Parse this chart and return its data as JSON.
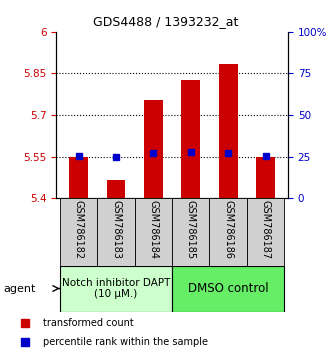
{
  "title": "GDS4488 / 1393232_at",
  "samples": [
    "GSM786182",
    "GSM786183",
    "GSM786184",
    "GSM786185",
    "GSM786186",
    "GSM786187"
  ],
  "red_values": [
    5.548,
    5.465,
    5.755,
    5.825,
    5.885,
    5.548
  ],
  "blue_values": [
    5.553,
    5.549,
    5.562,
    5.565,
    5.562,
    5.551
  ],
  "ylim_left": [
    5.4,
    6.0
  ],
  "ylim_right": [
    0,
    100
  ],
  "yticks_left": [
    5.4,
    5.55,
    5.7,
    5.85,
    6.0
  ],
  "ytick_labels_left": [
    "5.4",
    "5.55",
    "5.7",
    "5.85",
    "6"
  ],
  "yticks_right": [
    0,
    25,
    50,
    75,
    100
  ],
  "ytick_labels_right": [
    "0",
    "25",
    "50",
    "75",
    "100%"
  ],
  "group1_label": "Notch inhibitor DAPT\n(10 μM.)",
  "group2_label": "DMSO control",
  "group1_indices": [
    0,
    1,
    2
  ],
  "group2_indices": [
    3,
    4,
    5
  ],
  "group1_color": "#ccffcc",
  "group2_color": "#66ee66",
  "agent_label": "agent",
  "legend1_label": "transformed count",
  "legend2_label": "percentile rank within the sample",
  "bar_color": "#cc0000",
  "dot_color": "#0000cc",
  "bar_bottom": 5.4,
  "bar_width": 0.5,
  "left_tick_color": "#cc0000",
  "right_tick_color": "#0000cc",
  "sample_box_color": "#d0d0d0",
  "title_fontsize": 9
}
